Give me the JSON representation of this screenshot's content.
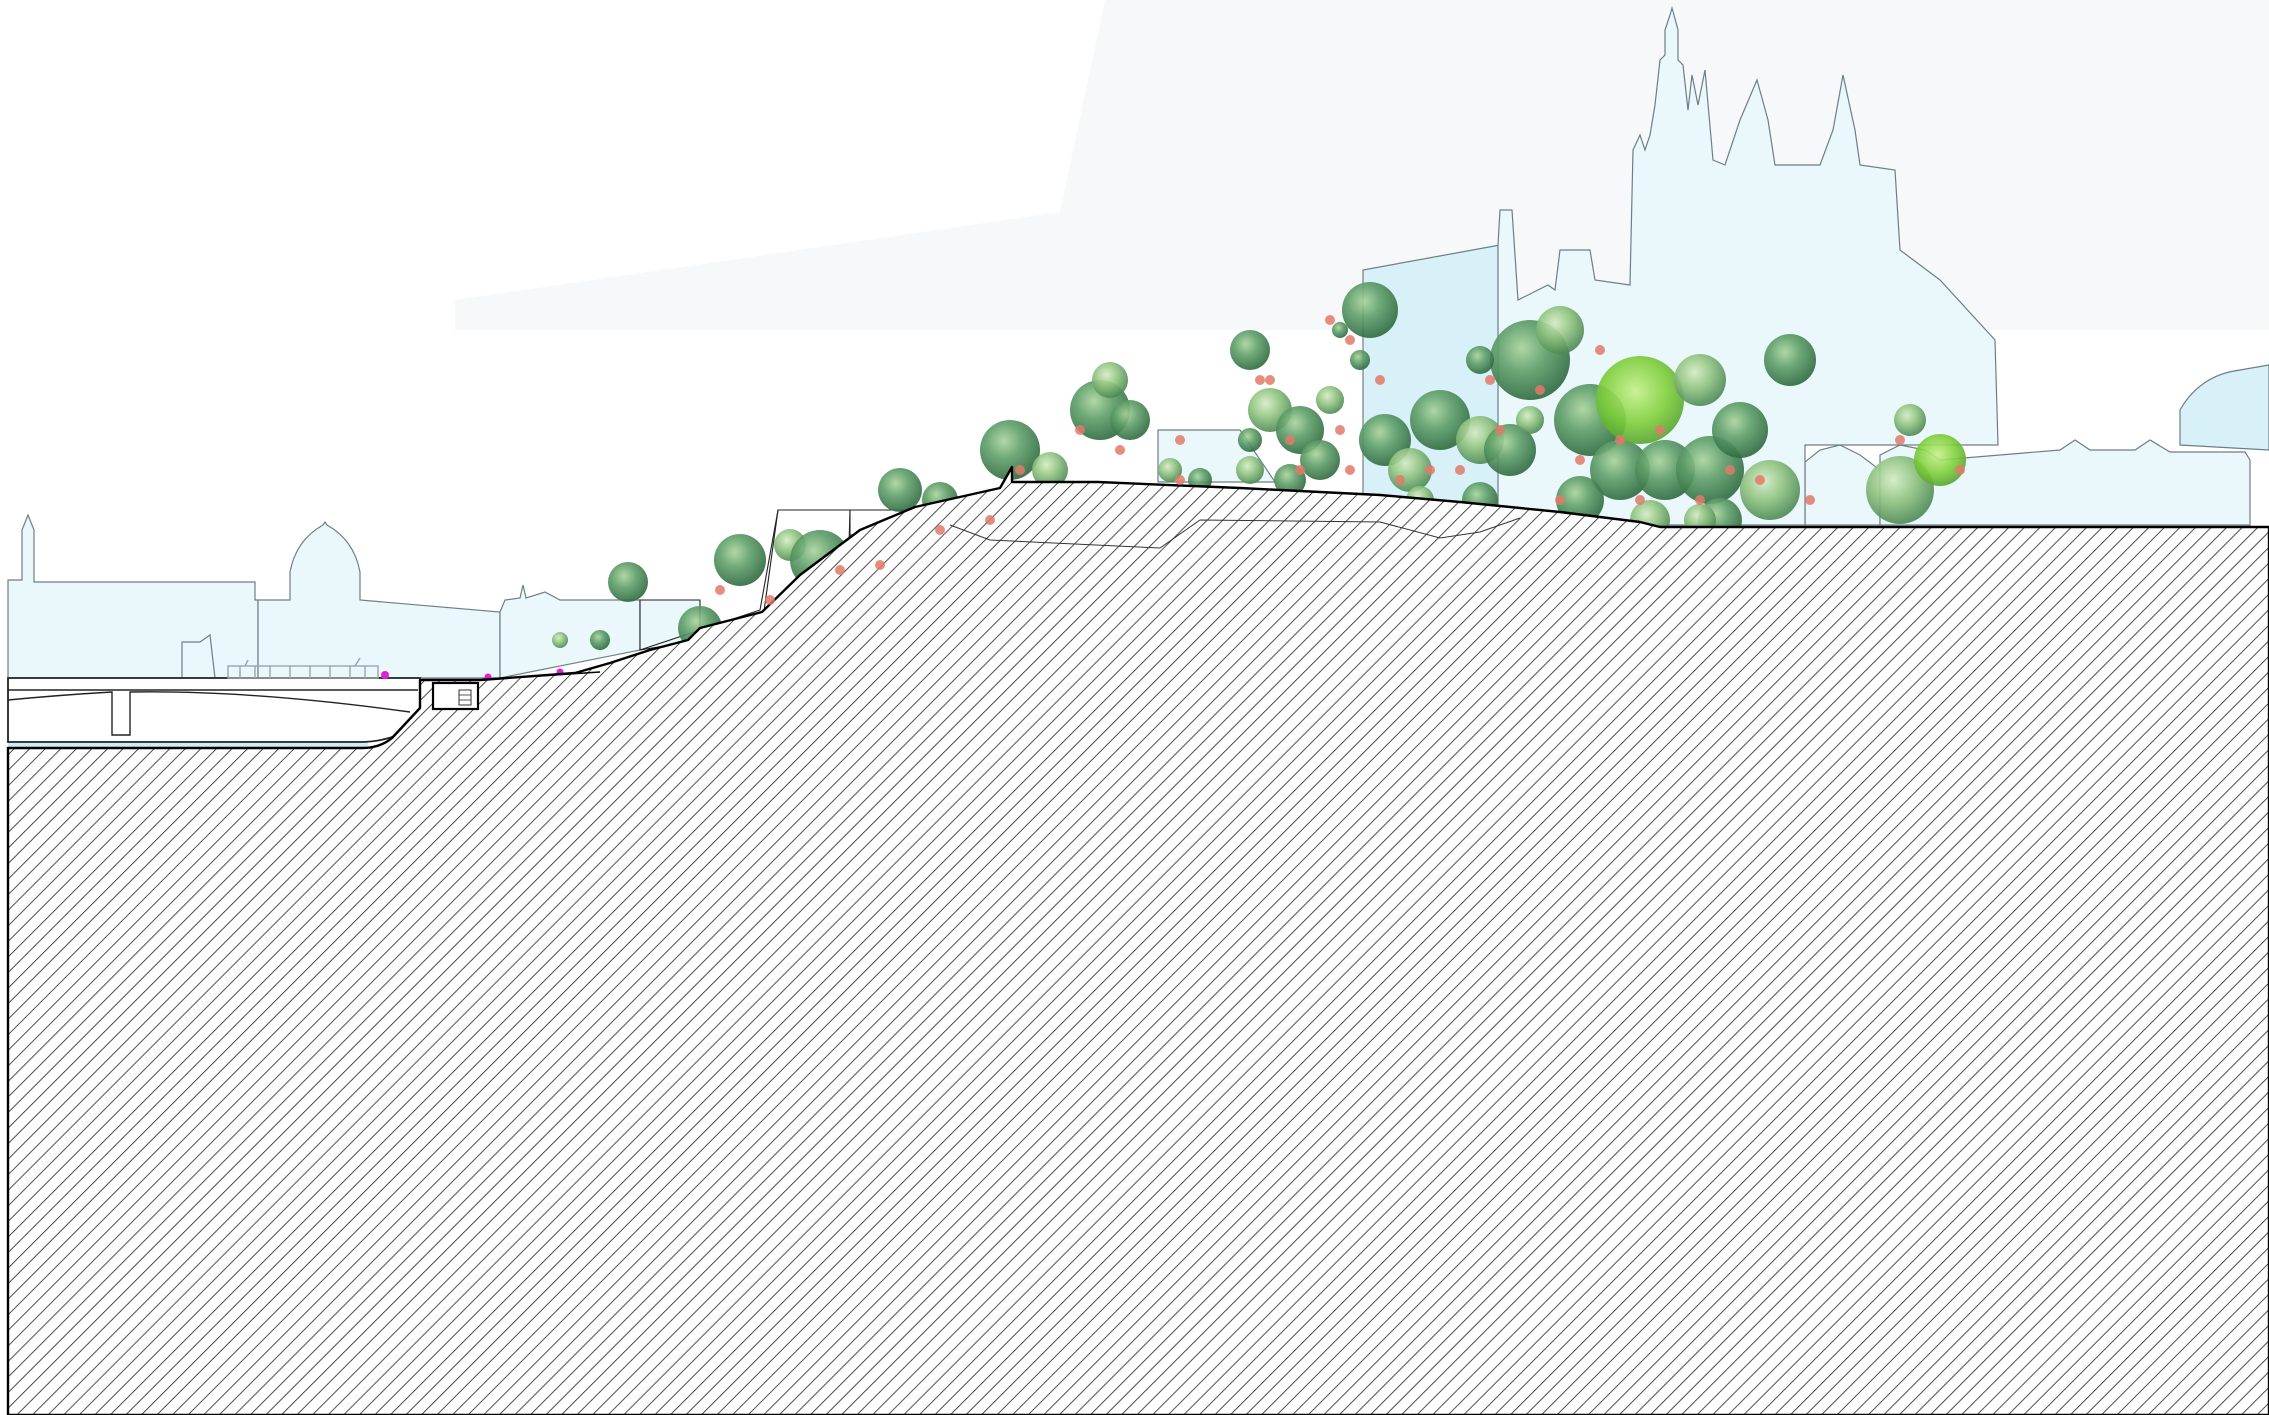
{
  "drawing": {
    "kind": "site-section",
    "colors": {
      "sky": "#ffffff",
      "sky_haze": "#f6f8f9",
      "building_fill": "#eaf7fb",
      "building_fill_dark": "#d8f1f8",
      "building_stroke": "#6d7f86",
      "water": "#cdeef3",
      "ground_hatch": "#222222",
      "ground_outline": "#000000",
      "tree_dark": "#3f7e4f",
      "tree_mid": "#5f9f69",
      "tree_light": "#8fc27f",
      "tree_lime": "#7fd03a",
      "blossom": "#e07a6a",
      "people": "#e21ee0",
      "tram": "#9aa6ab"
    },
    "elements": [
      "river",
      "bridge",
      "tram",
      "embankment",
      "tunnel",
      "hillside-garden",
      "terrace-walls",
      "trees",
      "cathedral",
      "castle-buildings",
      "domed-building",
      "hatched-ground"
    ]
  }
}
